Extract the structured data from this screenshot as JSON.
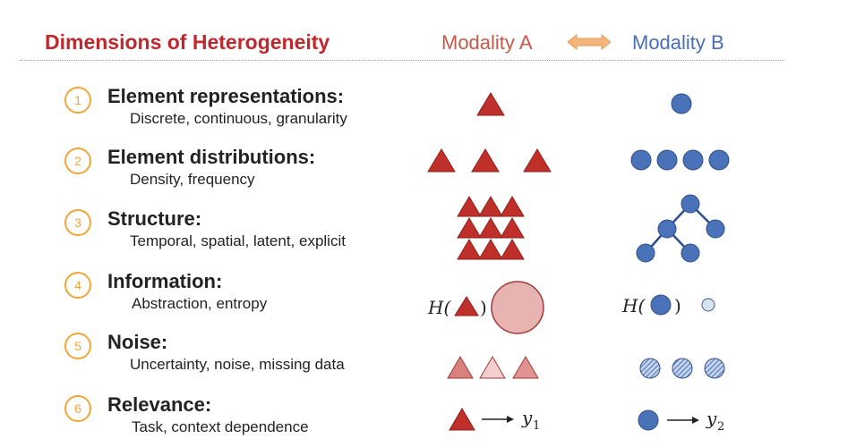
{
  "header": {
    "title": "Dimensions of Heterogeneity",
    "modality_a": "Modality A",
    "modality_b": "Modality B"
  },
  "rows": [
    {
      "number": "1",
      "heading": "Element representations:",
      "sub": "Discrete, continuous, granularity"
    },
    {
      "number": "2",
      "heading": "Element distributions:",
      "sub": "Density, frequency"
    },
    {
      "number": "3",
      "heading": "Structure:",
      "sub": "Temporal, spatial, latent, explicit"
    },
    {
      "number": "4",
      "heading": "Information:",
      "sub": "Abstraction, entropy"
    },
    {
      "number": "5",
      "heading": "Noise:",
      "sub": "Uncertainty, noise, missing data"
    },
    {
      "number": "6",
      "heading": "Relevance:",
      "sub": "Task, context dependence"
    }
  ],
  "math": {
    "h_a": "H(",
    "h_a_close": ")",
    "h_b": "H(",
    "h_b_close": ")",
    "y1": "y",
    "y1_sub": "1",
    "y2": "y",
    "y2_sub": "2"
  },
  "colors": {
    "title": "#c0282d",
    "modality_a": "#c55a4b",
    "modality_b": "#4a6fb5",
    "triangle": "#c0302a",
    "circle": "#4a72b8",
    "badge": "#f0a63a"
  }
}
